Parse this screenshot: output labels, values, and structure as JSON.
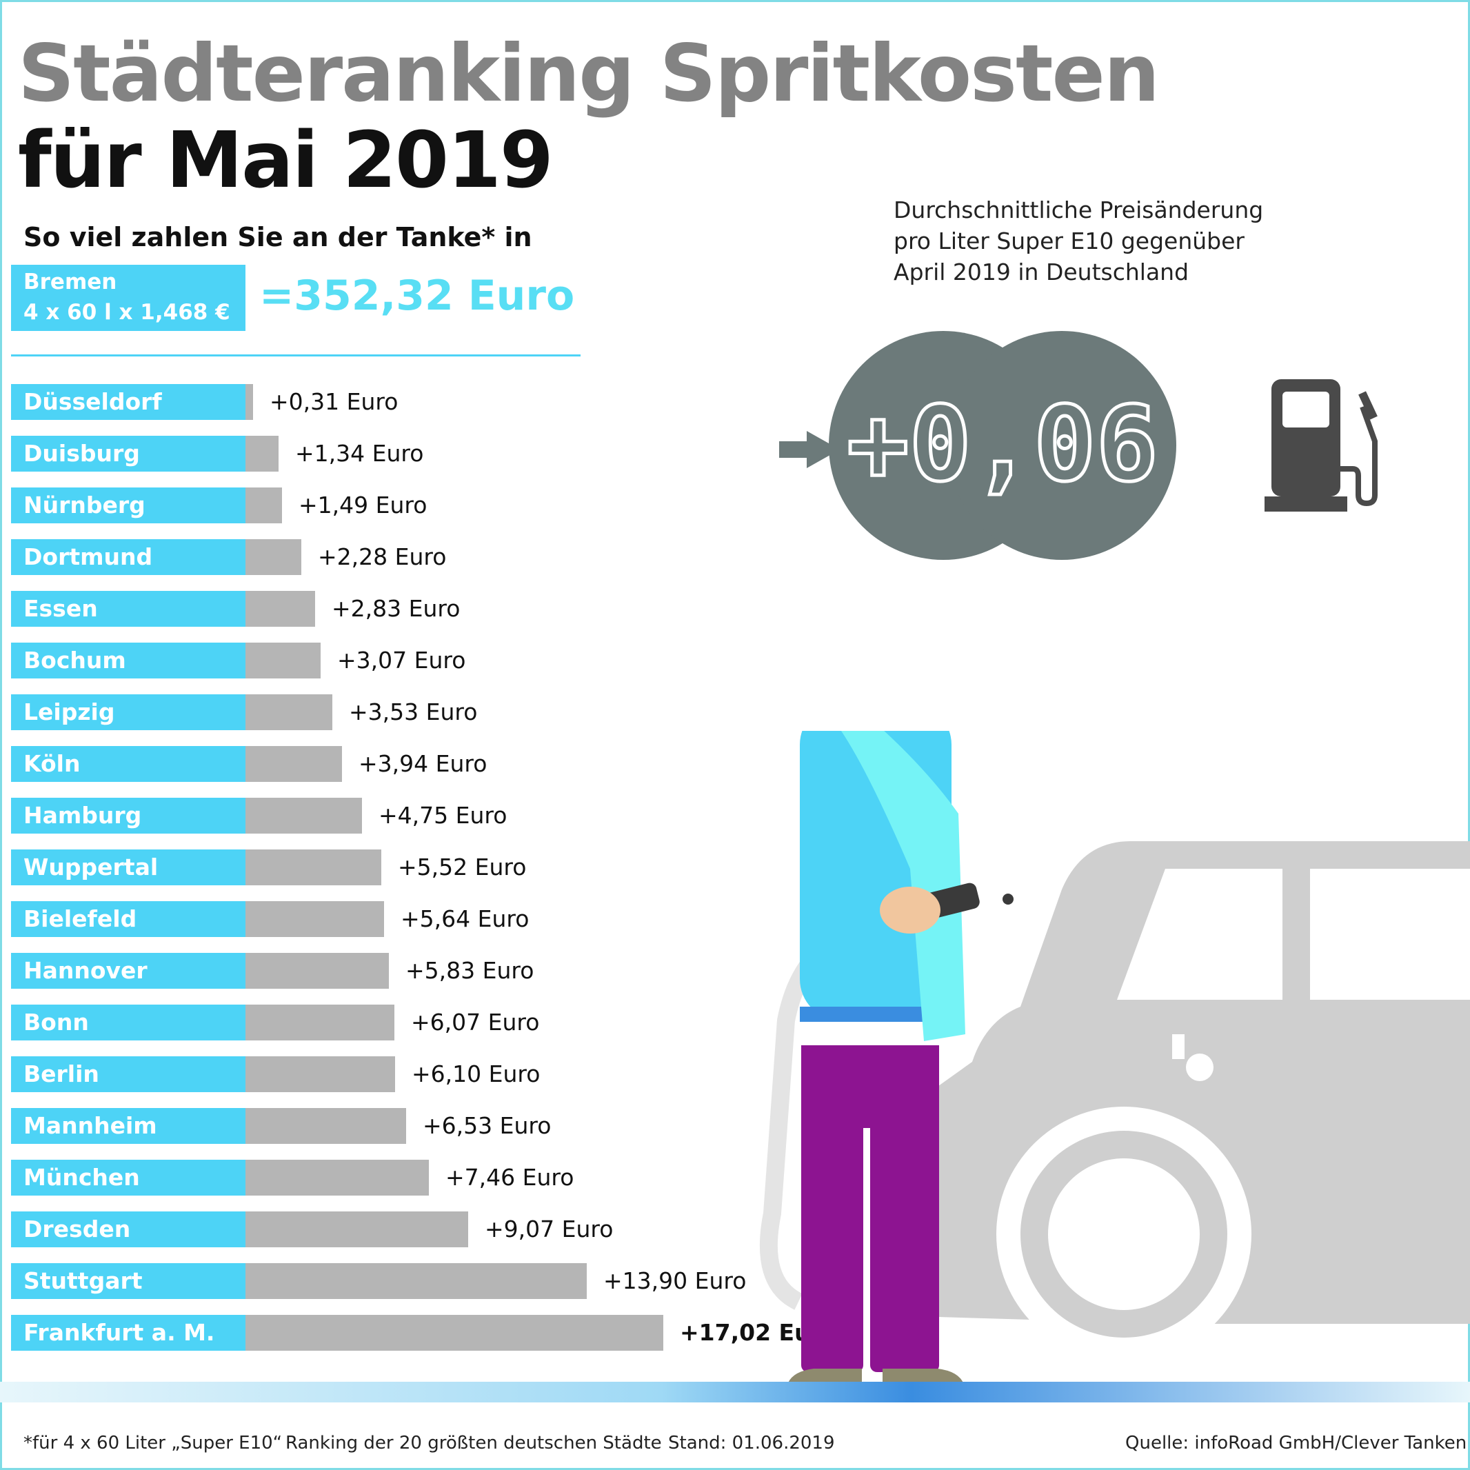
{
  "title_line1": "Städteranking Spritkosten",
  "title_line2": "für Mai 2019",
  "subtitle": "So viel zahlen Sie an der Tanke* in",
  "reference": {
    "city": "Bremen",
    "formula": "4 x 60 l x 1,468 €",
    "total": "=352,32 Euro"
  },
  "price_change": {
    "description_lines": [
      "Durchschnittliche Preisänderung",
      "pro Liter Super E10 gegenüber",
      "April 2019 in Deutschland"
    ],
    "value": "+0,06"
  },
  "chart_data": {
    "type": "bar",
    "orientation": "horizontal",
    "categories": [
      "Düsseldorf",
      "Duisburg",
      "Nürnberg",
      "Dortmund",
      "Essen",
      "Bochum",
      "Leipzig",
      "Köln",
      "Hamburg",
      "Wuppertal",
      "Bielefeld",
      "Hannover",
      "Bonn",
      "Berlin",
      "Mannheim",
      "München",
      "Dresden",
      "Stuttgart",
      "Frankfurt a. M."
    ],
    "values": [
      0.31,
      1.34,
      1.49,
      2.28,
      2.83,
      3.07,
      3.53,
      3.94,
      4.75,
      5.52,
      5.64,
      5.83,
      6.07,
      6.1,
      6.53,
      7.46,
      9.07,
      13.9,
      17.02
    ],
    "value_labels": [
      "+0,31 Euro",
      "+1,34 Euro",
      "+1,49 Euro",
      "+2,28 Euro",
      "+2,83 Euro",
      "+3,07 Euro",
      "+3,53 Euro",
      "+3,94 Euro",
      "+4,75 Euro",
      "+5,52 Euro",
      "+5,64 Euro",
      "+5,83 Euro",
      "+6,07 Euro",
      "+6,10 Euro",
      "+6,53 Euro",
      "+7,46 Euro",
      "+9,07 Euro",
      "+13,90 Euro",
      "+17,02 Euro"
    ],
    "xlim": [
      0,
      17.02
    ],
    "highlight_last": true
  },
  "footer": {
    "note": "*für 4 x 60 Liter „Super E10“",
    "ranking": "Ranking der 20 größten deutschen Städte",
    "date": "Stand: 01.06.2019",
    "source": "Quelle: infoRoad GmbH/Clever Tanken"
  },
  "colors": {
    "accent": "#4dd3f6",
    "bar": "#b5b5b5",
    "circle": "#6c7a7a",
    "pump": "#4a4a4a"
  },
  "icons": [
    "arrow-right-icon",
    "fuel-pump-icon",
    "man-refueling-illustration",
    "car-illustration"
  ]
}
